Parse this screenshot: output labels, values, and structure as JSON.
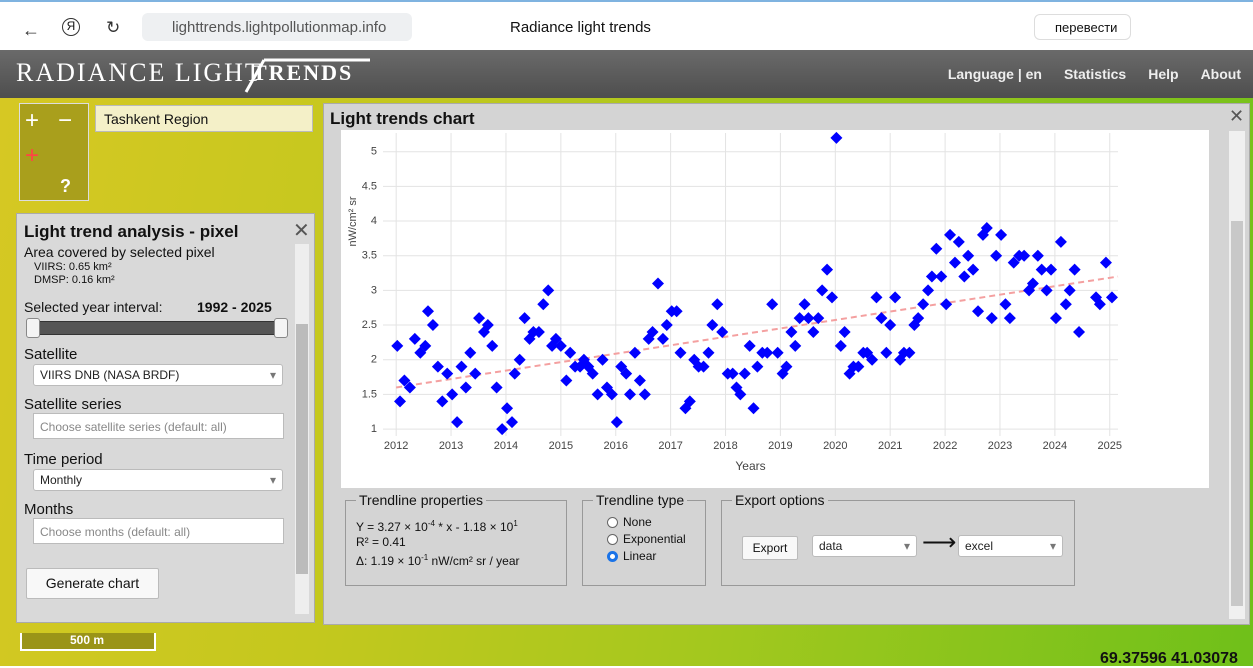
{
  "browser": {
    "url": "lighttrends.lightpollutionmap.info",
    "tab_title": "Radiance light trends",
    "translate": "перевести"
  },
  "header": {
    "logo_left": "RADIANCE LIGHT",
    "logo_right": "TRENDS",
    "nav": [
      "Language | en",
      "Statistics",
      "Help",
      "About"
    ]
  },
  "map": {
    "search": "Tashkent Region",
    "scale": "500 m",
    "coords": "69.37596 41.03078"
  },
  "analysis_panel": {
    "title": "Light trend analysis - pixel",
    "area_label": "Area covered by selected pixel",
    "viirs": "VIIRS: 0.65 km²",
    "dmsp": "DMSP: 0.16 km²",
    "interval_label": "Selected year interval:",
    "interval": "1992 - 2025",
    "satellite_label": "Satellite",
    "satellite": "VIIRS DNB (NASA BRDF)",
    "series_label": "Satellite series",
    "series_placeholder": "Choose satellite series (default: all)",
    "period_label": "Time period",
    "period": "Monthly",
    "months_label": "Months",
    "months_placeholder": "Choose months (default: all)",
    "button": "Generate chart"
  },
  "chart_panel": {
    "title": "Light trends chart"
  },
  "trendline_properties": {
    "legend": "Trendline properties",
    "lines": [
      [
        "Y = 3.27 × 10",
        "-4",
        " * x - 1.18 × 10",
        "1"
      ],
      [
        "R² = 0.41"
      ],
      [
        "Δ: 1.19 × 10",
        "-1",
        " nW/cm² sr / year"
      ]
    ]
  },
  "trendline_type": {
    "legend": "Trendline type",
    "options": [
      "None",
      "Exponential",
      "Linear"
    ],
    "selected": 2
  },
  "export_options": {
    "legend": "Export options",
    "button": "Export",
    "format": "data",
    "target": "excel"
  },
  "chart_data": {
    "type": "scatter",
    "x_label": "Years",
    "y_label": "nW/cm² sr",
    "color": "#0000ff",
    "grid": true,
    "xlim": [
      2011.76,
      2025.15
    ],
    "ylim": [
      0.9,
      5.27
    ],
    "xticks": [
      2012,
      2013,
      2014,
      2015,
      2016,
      2017,
      2018,
      2019,
      2020,
      2021,
      2022,
      2023,
      2024,
      2025
    ],
    "yticks": [
      1,
      1.5,
      2,
      2.5,
      3,
      3.5,
      4,
      4.5,
      5
    ],
    "x": [
      2012.02,
      2012.07,
      2012.15,
      2012.25,
      2012.34,
      2012.44,
      2012.53,
      2012.58,
      2012.67,
      2012.76,
      2012.84,
      2012.93,
      2013.02,
      2013.11,
      2013.19,
      2013.27,
      2013.35,
      2013.44,
      2013.51,
      2013.6,
      2013.67,
      2013.75,
      2013.83,
      2013.93,
      2014.02,
      2014.11,
      2014.16,
      2014.25,
      2014.34,
      2014.43,
      2014.5,
      2014.6,
      2014.68,
      2014.77,
      2014.84,
      2014.91,
      2015.0,
      2015.1,
      2015.17,
      2015.26,
      2015.35,
      2015.42,
      2015.5,
      2015.58,
      2015.67,
      2015.76,
      2015.84,
      2015.93,
      2016.02,
      2016.1,
      2016.19,
      2016.26,
      2016.35,
      2016.44,
      2016.53,
      2016.6,
      2016.67,
      2016.77,
      2016.86,
      2016.93,
      2017.02,
      2017.11,
      2017.18,
      2017.27,
      2017.35,
      2017.43,
      2017.51,
      2017.6,
      2017.69,
      2017.76,
      2017.85,
      2017.94,
      2018.04,
      2018.13,
      2018.2,
      2018.27,
      2018.35,
      2018.44,
      2018.51,
      2018.58,
      2018.67,
      2018.76,
      2018.85,
      2018.95,
      2019.04,
      2019.11,
      2019.2,
      2019.27,
      2019.35,
      2019.44,
      2019.51,
      2019.6,
      2019.69,
      2019.76,
      2019.85,
      2019.94,
      2020.02,
      2020.1,
      2020.17,
      2020.26,
      2020.33,
      2020.42,
      2020.51,
      2020.58,
      2020.67,
      2020.75,
      2020.84,
      2020.93,
      2021.0,
      2021.09,
      2021.18,
      2021.25,
      2021.35,
      2021.44,
      2021.51,
      2021.6,
      2021.69,
      2021.76,
      2021.84,
      2021.93,
      2022.02,
      2022.09,
      2022.18,
      2022.25,
      2022.35,
      2022.42,
      2022.51,
      2022.6,
      2022.69,
      2022.76,
      2022.85,
      2022.93,
      2023.02,
      2023.1,
      2023.18,
      2023.25,
      2023.35,
      2023.44,
      2023.53,
      2023.6,
      2023.69,
      2023.76,
      2023.85,
      2023.93,
      2024.02,
      2024.11,
      2024.2,
      2024.27,
      2024.36,
      2024.44,
      2024.75,
      2024.82,
      2024.93,
      2025.04
    ],
    "values": [
      2.2,
      1.4,
      1.7,
      1.6,
      2.3,
      2.1,
      2.2,
      2.7,
      2.5,
      1.9,
      1.4,
      1.8,
      1.5,
      1.1,
      1.9,
      1.6,
      2.1,
      1.8,
      2.6,
      2.4,
      2.5,
      2.2,
      1.6,
      1.0,
      1.3,
      1.1,
      1.8,
      2.0,
      2.6,
      2.3,
      2.4,
      2.4,
      2.8,
      3.0,
      2.2,
      2.3,
      2.2,
      1.7,
      2.1,
      1.9,
      1.9,
      2.0,
      1.9,
      1.8,
      1.5,
      2.0,
      1.6,
      1.5,
      1.1,
      1.9,
      1.8,
      1.5,
      2.1,
      1.7,
      1.5,
      2.3,
      2.4,
      3.1,
      2.3,
      2.5,
      2.7,
      2.7,
      2.1,
      1.3,
      1.4,
      2.0,
      1.9,
      1.9,
      2.1,
      2.5,
      2.8,
      2.4,
      1.8,
      1.8,
      1.6,
      1.5,
      1.8,
      2.2,
      1.3,
      1.9,
      2.1,
      2.1,
      2.8,
      2.1,
      1.8,
      1.9,
      2.4,
      2.2,
      2.6,
      2.8,
      2.6,
      2.4,
      2.6,
      3.0,
      3.3,
      2.9,
      5.2,
      2.2,
      2.4,
      1.8,
      1.9,
      1.9,
      2.1,
      2.1,
      2.0,
      2.9,
      2.6,
      2.1,
      2.5,
      2.9,
      2.0,
      2.1,
      2.1,
      2.5,
      2.6,
      2.8,
      3.0,
      3.2,
      3.6,
      3.2,
      2.8,
      3.8,
      3.4,
      3.7,
      3.2,
      3.5,
      3.3,
      2.7,
      3.8,
      3.9,
      2.6,
      3.5,
      3.8,
      2.8,
      2.6,
      3.4,
      3.5,
      3.5,
      3.0,
      3.1,
      3.5,
      3.3,
      3.0,
      3.3,
      2.6,
      3.7,
      2.8,
      3.0,
      3.3,
      2.4,
      2.9,
      2.8,
      3.4,
      2.9
    ],
    "trendline": {
      "color": "#f4a0a0",
      "x": [
        2012,
        2025.15
      ],
      "values": [
        1.6,
        3.2
      ]
    }
  }
}
